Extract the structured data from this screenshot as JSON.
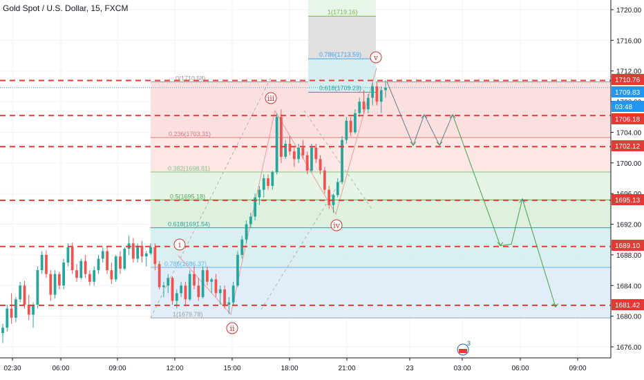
{
  "title": {
    "symbol": "Gold Spot / U.S. Dollar",
    "interval": "15",
    "exchange": "FXCM"
  },
  "chart_data": {
    "type": "candlestick",
    "ylim": [
      1674,
      1722
    ],
    "y_ticks": [
      1676,
      1680,
      1684,
      1688,
      1692,
      1696,
      1700,
      1704,
      1708,
      1712,
      1716,
      1720
    ],
    "x_ticks": [
      "02:30",
      "06:00",
      "09:00",
      "12:00",
      "15:00",
      "18:00",
      "21:00",
      "23",
      "03:00",
      "06:00",
      "09:00"
    ],
    "price_badges": [
      {
        "label": "1710.76",
        "value": 1710.76,
        "color": "#e53935"
      },
      {
        "label": "1709.83",
        "value": 1709.83,
        "color": "#2196f3"
      },
      {
        "label": "03:48",
        "value": 1708.0,
        "color": "#2196f3"
      },
      {
        "label": "1706.18",
        "value": 1706.18,
        "color": "#e53935"
      },
      {
        "label": "1702.12",
        "value": 1702.12,
        "color": "#e53935"
      },
      {
        "label": "1695.13",
        "value": 1695.13,
        "color": "#e53935"
      },
      {
        "label": "1689.10",
        "value": 1689.1,
        "color": "#e53935"
      },
      {
        "label": "1681.42",
        "value": 1681.42,
        "color": "#e53935"
      }
    ],
    "horizontal_levels": [
      1710.76,
      1706.18,
      1702.12,
      1695.13,
      1689.1,
      1681.42
    ],
    "fib_retracement": [
      {
        "label": "0(1710.58)",
        "value": 1710.58
      },
      {
        "label": "0.236(1703.31)",
        "value": 1703.31
      },
      {
        "label": "0.382(1698.81)",
        "value": 1698.81
      },
      {
        "label": "0.5(1695.18)",
        "value": 1695.18
      },
      {
        "label": "0.618(1691.54)",
        "value": 1691.54
      },
      {
        "label": "0.786(1686.37)",
        "value": 1686.37
      },
      {
        "label": "1(1679.78)",
        "value": 1679.78
      }
    ],
    "fib_extension": [
      {
        "label": "1(1719.16)",
        "value": 1719.16
      },
      {
        "label": "0.786(1713.59)",
        "value": 1713.59
      },
      {
        "label": "0.618(1709.23)",
        "value": 1709.23
      }
    ],
    "waves": [
      {
        "label": "i"
      },
      {
        "label": "ii"
      },
      {
        "label": "iii"
      },
      {
        "label": "iv"
      },
      {
        "label": "v"
      }
    ],
    "candles": [
      [
        1677.8,
        1679.0,
        1676.5,
        1678.5
      ],
      [
        1678.5,
        1681.5,
        1678.0,
        1681.0
      ],
      [
        1681.0,
        1683.0,
        1679.0,
        1679.8
      ],
      [
        1679.8,
        1682.5,
        1679.2,
        1682.2
      ],
      [
        1682.2,
        1684.5,
        1681.8,
        1684.0
      ],
      [
        1684.0,
        1684.6,
        1681.0,
        1681.5
      ],
      [
        1681.5,
        1682.8,
        1679.5,
        1680.2
      ],
      [
        1680.2,
        1681.8,
        1678.5,
        1681.5
      ],
      [
        1681.5,
        1686.5,
        1681.0,
        1686.0
      ],
      [
        1686.0,
        1688.5,
        1685.5,
        1688.0
      ],
      [
        1688.0,
        1688.6,
        1685.0,
        1685.5
      ],
      [
        1685.5,
        1686.0,
        1682.0,
        1682.8
      ],
      [
        1682.8,
        1686.0,
        1682.3,
        1685.5
      ],
      [
        1685.5,
        1685.8,
        1683.5,
        1684.0
      ],
      [
        1684.0,
        1687.5,
        1683.5,
        1687.0
      ],
      [
        1687.0,
        1689.5,
        1686.5,
        1689.0
      ],
      [
        1689.0,
        1689.6,
        1685.5,
        1686.0
      ],
      [
        1686.0,
        1686.8,
        1684.5,
        1685.0
      ],
      [
        1685.0,
        1687.5,
        1684.8,
        1687.2
      ],
      [
        1687.2,
        1688.0,
        1685.0,
        1685.5
      ],
      [
        1685.5,
        1686.0,
        1684.0,
        1684.5
      ],
      [
        1684.5,
        1686.5,
        1684.0,
        1686.0
      ],
      [
        1686.0,
        1688.0,
        1685.5,
        1687.5
      ],
      [
        1687.5,
        1689.0,
        1687.0,
        1688.5
      ],
      [
        1688.5,
        1689.2,
        1685.5,
        1686.0
      ],
      [
        1686.0,
        1687.0,
        1684.2,
        1684.8
      ],
      [
        1684.8,
        1688.0,
        1684.5,
        1687.8
      ],
      [
        1687.8,
        1688.5,
        1685.5,
        1686.2
      ],
      [
        1686.2,
        1689.0,
        1686.0,
        1688.8
      ],
      [
        1688.8,
        1690.5,
        1688.0,
        1689.5
      ],
      [
        1689.5,
        1690.2,
        1687.0,
        1687.5
      ],
      [
        1687.5,
        1689.5,
        1687.0,
        1689.2
      ],
      [
        1689.2,
        1689.8,
        1687.0,
        1687.8
      ],
      [
        1687.8,
        1688.5,
        1686.5,
        1688.2
      ],
      [
        1688.2,
        1689.5,
        1688.0,
        1689.0
      ],
      [
        1689.0,
        1689.5,
        1686.0,
        1686.8
      ],
      [
        1686.8,
        1687.2,
        1683.5,
        1683.8
      ],
      [
        1683.8,
        1684.5,
        1682.5,
        1684.0
      ],
      [
        1684.0,
        1685.5,
        1683.0,
        1685.0
      ],
      [
        1685.0,
        1685.2,
        1681.5,
        1682.0
      ],
      [
        1682.0,
        1683.5,
        1681.0,
        1683.0
      ],
      [
        1683.0,
        1684.5,
        1682.5,
        1684.0
      ],
      [
        1684.0,
        1684.5,
        1681.5,
        1682.2
      ],
      [
        1682.2,
        1686.0,
        1682.0,
        1685.5
      ],
      [
        1685.5,
        1686.5,
        1683.5,
        1684.0
      ],
      [
        1684.0,
        1685.0,
        1682.0,
        1682.5
      ],
      [
        1682.5,
        1686.5,
        1682.3,
        1686.0
      ],
      [
        1686.0,
        1686.5,
        1684.0,
        1684.5
      ],
      [
        1684.5,
        1685.0,
        1683.0,
        1684.8
      ],
      [
        1684.8,
        1685.5,
        1682.5,
        1683.0
      ],
      [
        1683.0,
        1684.0,
        1681.5,
        1683.5
      ],
      [
        1683.5,
        1684.0,
        1681.0,
        1681.5
      ],
      [
        1681.5,
        1682.5,
        1680.3,
        1681.8
      ],
      [
        1681.8,
        1684.5,
        1681.5,
        1684.0
      ],
      [
        1684.0,
        1688.5,
        1683.8,
        1688.0
      ],
      [
        1688.0,
        1690.5,
        1687.5,
        1690.0
      ],
      [
        1690.0,
        1692.5,
        1689.5,
        1692.0
      ],
      [
        1692.0,
        1693.5,
        1691.5,
        1693.0
      ],
      [
        1693.0,
        1696.0,
        1692.5,
        1695.5
      ],
      [
        1695.5,
        1697.0,
        1694.5,
        1696.5
      ],
      [
        1696.5,
        1698.5,
        1695.5,
        1698.0
      ],
      [
        1698.0,
        1698.5,
        1696.5,
        1697.0
      ],
      [
        1697.0,
        1699.0,
        1696.5,
        1698.8
      ],
      [
        1698.8,
        1706.5,
        1698.5,
        1706.0
      ],
      [
        1706.0,
        1707.0,
        1700.0,
        1700.8
      ],
      [
        1700.8,
        1703.0,
        1700.5,
        1702.5
      ],
      [
        1702.5,
        1703.5,
        1701.0,
        1701.5
      ],
      [
        1701.5,
        1702.0,
        1699.5,
        1700.5
      ],
      [
        1700.5,
        1702.5,
        1700.0,
        1702.0
      ],
      [
        1702.0,
        1703.0,
        1700.5,
        1701.0
      ],
      [
        1701.0,
        1701.5,
        1698.5,
        1699.0
      ],
      [
        1699.0,
        1702.5,
        1698.8,
        1702.0
      ],
      [
        1702.0,
        1702.5,
        1700.0,
        1700.5
      ],
      [
        1700.5,
        1701.0,
        1698.5,
        1699.0
      ],
      [
        1699.0,
        1699.5,
        1696.0,
        1696.5
      ],
      [
        1696.5,
        1697.0,
        1694.0,
        1694.5
      ],
      [
        1694.5,
        1696.0,
        1693.5,
        1695.8
      ],
      [
        1695.8,
        1698.0,
        1695.5,
        1697.5
      ],
      [
        1697.5,
        1703.5,
        1697.2,
        1703.0
      ],
      [
        1703.0,
        1706.0,
        1702.5,
        1705.5
      ],
      [
        1705.5,
        1706.0,
        1703.5,
        1704.0
      ],
      [
        1704.0,
        1707.0,
        1703.8,
        1706.5
      ],
      [
        1706.5,
        1708.5,
        1706.0,
        1708.0
      ],
      [
        1708.0,
        1709.5,
        1706.5,
        1707.0
      ],
      [
        1707.0,
        1709.0,
        1706.5,
        1708.5
      ],
      [
        1708.5,
        1710.5,
        1707.5,
        1710.0
      ],
      [
        1710.0,
        1710.5,
        1707.5,
        1708.0
      ],
      [
        1708.0,
        1710.0,
        1706.5,
        1709.5
      ],
      [
        1709.5,
        1710.8,
        1708.5,
        1709.83
      ]
    ],
    "projections": [
      [
        [
          1710.6,
          1706.5
        ],
        [
          1707.0,
          1703.0
        ],
        [
          1703.2,
          1706.5
        ],
        [
          1706.8,
          1702.5
        ],
        [
          1702.6,
          1706.2
        ],
        [
          1706.0,
          1681.5
        ]
      ],
      [
        [
          1706.0,
          1695.0
        ],
        [
          1695.5,
          1689.3
        ],
        [
          1689.3,
          1695.0
        ],
        [
          1695.2,
          1681.3
        ]
      ]
    ]
  }
}
